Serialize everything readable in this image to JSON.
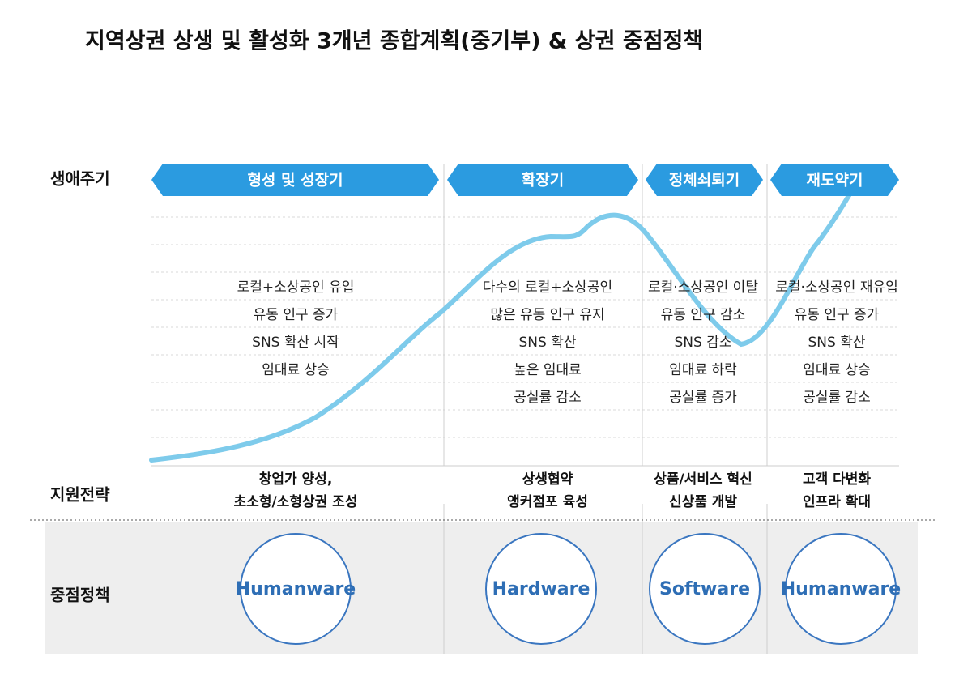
{
  "title": "지역상권 상생 및 활성화 3개년 종합계획(중기부) & 상권 중점정책",
  "row_labels": [
    "생애주기",
    "지원전략",
    "중점정책"
  ],
  "stages": [
    {
      "name": "형성 및 성장기",
      "traits": [
        "로컬+소상공인 유입",
        "유동 인구 증가",
        "SNS 확산 시작",
        "임대료 상승"
      ],
      "strategy": [
        "창업가 양성,",
        "초소형/소형상권 조성"
      ],
      "policy": "Humanware"
    },
    {
      "name": "확장기",
      "traits": [
        "다수의 로컬+소상공인",
        "많은 유동 인구 유지",
        "SNS 확산",
        "높은 임대료",
        "공실률 감소"
      ],
      "strategy": [
        "상생협약",
        "앵커점포 육성"
      ],
      "policy": "Hardware"
    },
    {
      "name": "정체쇠퇴기",
      "traits": [
        "로컬·소상공인 이탈",
        "유동 인구 감소",
        "SNS 감소",
        "임대료 하락",
        "공실률 증가"
      ],
      "strategy": [
        "상품/서비스 혁신",
        "신상품 개발"
      ],
      "policy": "Software"
    },
    {
      "name": "재도약기",
      "traits": [
        "로컬·소상공인 재유입",
        "유동 인구 증가",
        "SNS 확산",
        "임대료 상승",
        "공실률 감소"
      ],
      "strategy": [
        "고객 다변화",
        "인프라 확대"
      ],
      "policy": "Humanware"
    }
  ]
}
